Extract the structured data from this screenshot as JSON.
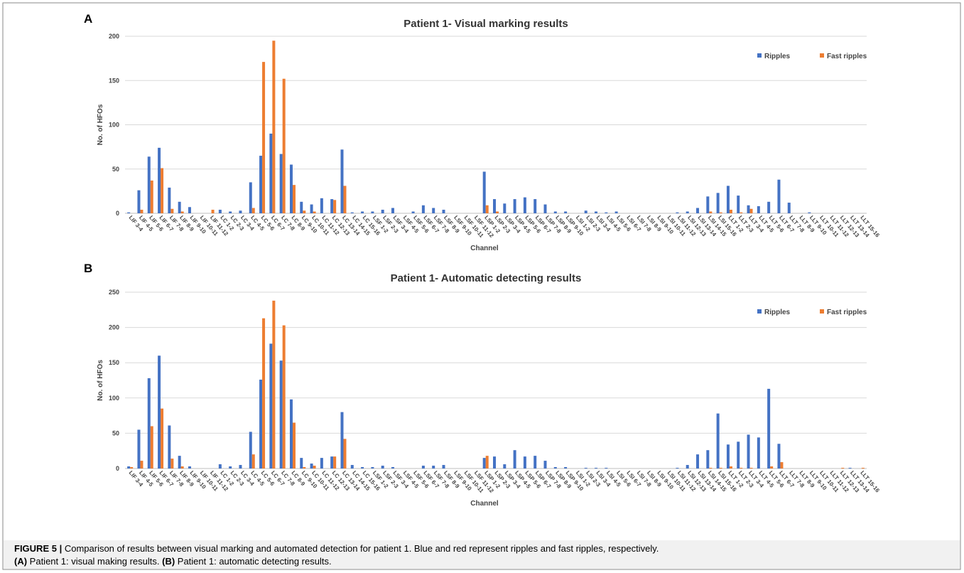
{
  "chart_data": [
    {
      "type": "bar",
      "panel": "A",
      "title": "Patient 1- Visual marking results",
      "x_label": "Channel",
      "y_label": "No. of HFOs",
      "categories": [
        "LIF 3-4",
        "LIF 4-5",
        "LIF 5-6",
        "LIF 6-7",
        "LIF 7-8",
        "LIF 8-9",
        "LIF 9-10",
        "LIF 10-11",
        "LIF 11-12",
        "LC 1-2",
        "LC 2-3",
        "LC 3-4",
        "LC 4-5",
        "LC 5-6",
        "LC 6-7",
        "LC 7-8",
        "LC 8-9",
        "LC 9-10",
        "LC 10-11",
        "LC 11-12",
        "LC 12-13",
        "LC 13-14",
        "LC 14-15",
        "LC 15-16",
        "LSF 1-2",
        "LSF 2-3",
        "LSF 3-4",
        "LSF 4-5",
        "LSF 5-6",
        "LSF 6-7",
        "LSF 7-8",
        "LSF 8-9",
        "LSF 9-10",
        "LSF 10-11",
        "LSF 11-12",
        "LSP 1-2",
        "LSP 2-3",
        "LSP 3-4",
        "LSP 4-5",
        "LSP 5-6",
        "LSP 6-7",
        "LSP 7-8",
        "LSP 8-9",
        "LSP 9-10",
        "LSI 1-2",
        "LSI 2-3",
        "LSI 3-4",
        "LSI 4-5",
        "LSI 5-6",
        "LSI 6-7",
        "LSI 7-8",
        "LSI 8-9",
        "LSI 9-10",
        "LSI 10-11",
        "LSI 11-12",
        "LSI 12-13",
        "LSI 13-14",
        "LSI 14-15",
        "LSI 15-16",
        "LLT 1-2",
        "LLT 2-3",
        "LLT 3-4",
        "LLT 4-5",
        "LLT 5-6",
        "LLT 6-7",
        "LLT 7-8",
        "LLT 8-9",
        "LLT 9-10",
        "LLT 10-11",
        "LLT 11-12",
        "LLT 12-13",
        "LLT 13-14",
        "LLT 15-16"
      ],
      "series": [
        {
          "name": "Ripples",
          "color": "#4472c4",
          "values": [
            1,
            26,
            64,
            74,
            29,
            13,
            7,
            0,
            0,
            4,
            2,
            3,
            35,
            65,
            90,
            67,
            55,
            13,
            10,
            17,
            16,
            72,
            1,
            2,
            2,
            4,
            6,
            0,
            2,
            9,
            6,
            4,
            0,
            0,
            0,
            47,
            16,
            11,
            16,
            18,
            16,
            10,
            2,
            2,
            0,
            3,
            2,
            1,
            2,
            0,
            0,
            0,
            0,
            0,
            1,
            2,
            6,
            19,
            23,
            31,
            20,
            9,
            8,
            13,
            38,
            12,
            0,
            1,
            0,
            0,
            0,
            0,
            0
          ]
        },
        {
          "name": "Fast ripples",
          "color": "#ed7d31",
          "values": [
            0,
            4,
            37,
            51,
            5,
            2,
            0,
            0,
            4,
            0,
            0,
            0,
            6,
            171,
            195,
            152,
            32,
            3,
            2,
            0,
            15,
            31,
            0,
            0,
            0,
            0,
            0,
            0,
            0,
            0,
            0,
            0,
            0,
            0,
            0,
            9,
            2,
            0,
            0,
            0,
            0,
            0,
            0,
            0,
            0,
            0,
            0,
            0,
            0,
            0,
            0,
            0,
            0,
            0,
            0,
            0,
            0,
            2,
            1,
            4,
            1,
            5,
            0,
            0,
            0,
            0,
            0,
            0,
            0,
            0,
            0,
            0,
            0
          ]
        }
      ],
      "ylim": [
        0,
        200
      ],
      "yticks": [
        0,
        50,
        100,
        150,
        200
      ],
      "grid": true,
      "legend_position": "upper right"
    },
    {
      "type": "bar",
      "panel": "B",
      "title": "Patient 1- Automatic detecting results",
      "x_label": "Channel",
      "y_label": "No. of HFOs",
      "categories": [
        "LIF 3-4",
        "LIF 4-5",
        "LIF 5-6",
        "LIF 6-7",
        "LIF 7-8",
        "LIF 8-9",
        "LIF 9-10",
        "LIF 10-11",
        "LIF 11-12",
        "LC 1-2",
        "LC 2-3",
        "LC 3-4",
        "LC 4-5",
        "LC 5-6",
        "LC 6-7",
        "LC 7-8",
        "LC 8-9",
        "LC 9-10",
        "LC 10-11",
        "LC 11-12",
        "LC 12-13",
        "LC 13-14",
        "LC 14-15",
        "LC 15-16",
        "LSF 1-2",
        "LSF 2-3",
        "LSF 3-4",
        "LSF 4-5",
        "LSF 5-6",
        "LSF 6-7",
        "LSF 7-8",
        "LSF 8-9",
        "LSF 9-10",
        "LSF 10-11",
        "LSF 11-12",
        "LSP 1-2",
        "LSP 2-3",
        "LSP 3-4",
        "LSP 4-5",
        "LSP 5-6",
        "LSP 6-7",
        "LSP 7-8",
        "LSP 8-9",
        "LSP 9-10",
        "LSI 1-2",
        "LSI 2-3",
        "LSI 3-4",
        "LSI 4-5",
        "LSI 5-6",
        "LSI 6-7",
        "LSI 7-8",
        "LSI 8-9",
        "LSI 9-10",
        "LSI 10-11",
        "LSI 11-12",
        "LSI 12-13",
        "LSI 13-14",
        "LSI 14-15",
        "LSI 15-16",
        "LLT 1-2",
        "LLT 2-3",
        "LLT 3-4",
        "LLT 4-5",
        "LLT 5-6",
        "LLT 6-7",
        "LLT 7-8",
        "LLT 8-9",
        "LLT 9-10",
        "LLT 10-11",
        "LLT 11-12",
        "LLT 12-13",
        "LLT 13-14",
        "LLT 15-16"
      ],
      "series": [
        {
          "name": "Ripples",
          "color": "#4472c4",
          "values": [
            3,
            55,
            128,
            160,
            61,
            18,
            3,
            0,
            0,
            6,
            3,
            5,
            52,
            126,
            177,
            153,
            98,
            15,
            7,
            15,
            17,
            80,
            5,
            2,
            2,
            4,
            2,
            0,
            0,
            4,
            4,
            5,
            0,
            0,
            0,
            15,
            17,
            6,
            26,
            17,
            18,
            11,
            2,
            2,
            0,
            1,
            1,
            1,
            0,
            0,
            0,
            0,
            0,
            0,
            1,
            5,
            20,
            26,
            78,
            34,
            38,
            48,
            44,
            113,
            35,
            0,
            0,
            0,
            0,
            0,
            0,
            1,
            0
          ]
        },
        {
          "name": "Fast ripples",
          "color": "#ed7d31",
          "values": [
            2,
            11,
            60,
            85,
            14,
            3,
            0,
            0,
            0,
            0,
            0,
            0,
            20,
            213,
            238,
            203,
            65,
            2,
            4,
            0,
            17,
            42,
            0,
            0,
            0,
            0,
            0,
            0,
            0,
            0,
            0,
            0,
            0,
            0,
            0,
            18,
            0,
            0,
            0,
            0,
            0,
            0,
            0,
            0,
            0,
            0,
            0,
            0,
            0,
            0,
            0,
            0,
            0,
            0,
            0,
            0,
            0,
            1,
            1,
            3,
            1,
            1,
            0,
            3,
            9,
            0,
            0,
            0,
            0,
            0,
            1,
            0,
            1
          ]
        }
      ],
      "ylim": [
        0,
        250
      ],
      "yticks": [
        0,
        50,
        100,
        150,
        200,
        250
      ],
      "grid": true,
      "legend_position": "upper right"
    }
  ],
  "caption": {
    "label": "FIGURE 5 |",
    "text": "Comparison of results between visual marking and automated detection for patient 1. Blue and red represent ripples and fast ripples, respectively.",
    "a_label": "(A)",
    "a_text": "Patient 1: visual making results.",
    "b_label": "(B)",
    "b_text": "Patient 1: automatic detecting results."
  }
}
